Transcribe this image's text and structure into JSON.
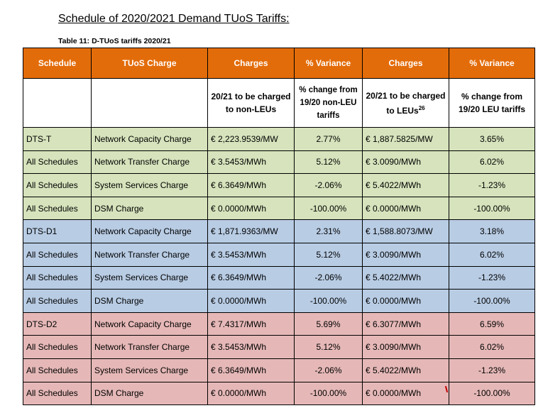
{
  "heading": "Schedule of 2020/2021 Demand TUoS Tariffs:",
  "caption": "Table 11: D-TUoS tariffs 2020/21",
  "header": [
    "Schedule",
    "TUoS Charge",
    "Charges",
    "% Variance",
    "Charges",
    "% Variance"
  ],
  "subheader": {
    "col3": "20/21 to be charged to non-LEUs",
    "col4": "% change from 19/20 non-LEU tariffs",
    "col5_text": "20/21 to be charged to LEUs",
    "col5_sup": "26",
    "col6": "% change from 19/20 LEU tariffs"
  },
  "rows": [
    {
      "group": "green",
      "schedule": "DTS-T",
      "charge": "Network Capacity Charge",
      "nonleu": "€ 2,223.9539/MW",
      "nonleu_var": "2.77%",
      "leu": "€ 1,887.5825/MW",
      "leu_var": "3.65%"
    },
    {
      "group": "green",
      "schedule": "All Schedules",
      "charge": "Network Transfer Charge",
      "nonleu": "€ 3.5453/MWh",
      "nonleu_var": "5.12%",
      "leu": "€ 3.0090/MWh",
      "leu_var": "6.02%"
    },
    {
      "group": "green",
      "schedule": "All Schedules",
      "charge": "System Services Charge",
      "nonleu": "€ 6.3649/MWh",
      "nonleu_var": "-2.06%",
      "leu": "€ 5.4022/MWh",
      "leu_var": "-1.23%"
    },
    {
      "group": "green",
      "schedule": "All Schedules",
      "charge": "DSM Charge",
      "nonleu": "€ 0.0000/MWh",
      "nonleu_var": "-100.00%",
      "leu": "€ 0.0000/MWh",
      "leu_var": "-100.00%"
    },
    {
      "group": "blue",
      "schedule": "DTS-D1",
      "charge": "Network Capacity Charge",
      "nonleu": "€ 1,871.9363/MW",
      "nonleu_var": "2.31%",
      "leu": "€ 1,588.8073/MW",
      "leu_var": "3.18%"
    },
    {
      "group": "blue",
      "schedule": "All Schedules",
      "charge": "Network Transfer Charge",
      "nonleu": "€ 3.5453/MWh",
      "nonleu_var": "5.12%",
      "leu": "€ 3.0090/MWh",
      "leu_var": "6.02%"
    },
    {
      "group": "blue",
      "schedule": "All Schedules",
      "charge": "System Services Charge",
      "nonleu": "€ 6.3649/MWh",
      "nonleu_var": "-2.06%",
      "leu": "€ 5.4022/MWh",
      "leu_var": "-1.23%"
    },
    {
      "group": "blue",
      "schedule": "All Schedules",
      "charge": "DSM Charge",
      "nonleu": "€ 0.0000/MWh",
      "nonleu_var": "-100.00%",
      "leu": "€ 0.0000/MWh",
      "leu_var": "-100.00%"
    },
    {
      "group": "red",
      "schedule": "DTS-D2",
      "charge": "Network Capacity Charge",
      "nonleu": "€ 7.4317/MWh",
      "nonleu_var": "5.69%",
      "leu": "€ 6.3077/MWh",
      "leu_var": "6.59%"
    },
    {
      "group": "red",
      "schedule": "All Schedules",
      "charge": "Network Transfer Charge",
      "nonleu": "€ 3.5453/MWh",
      "nonleu_var": "5.12%",
      "leu": "€ 3.0090/MWh",
      "leu_var": "6.02%"
    },
    {
      "group": "red",
      "schedule": "All Schedules",
      "charge": "System Services Charge",
      "nonleu": "€ 6.3649/MWh",
      "nonleu_var": "-2.06%",
      "leu": "€ 5.4022/MWh",
      "leu_var": "-1.23%"
    },
    {
      "group": "red",
      "schedule": "All Schedules",
      "charge": "DSM Charge",
      "nonleu": "€ 0.0000/MWh",
      "nonleu_var": "-100.00%",
      "leu": "€ 0.0000/MWh",
      "leu_var": "-100.00%"
    }
  ],
  "colors": {
    "header_bg": "#e36c0a",
    "green": "#d6e3bc",
    "blue": "#b8cce4",
    "red": "#e5b8b7"
  }
}
